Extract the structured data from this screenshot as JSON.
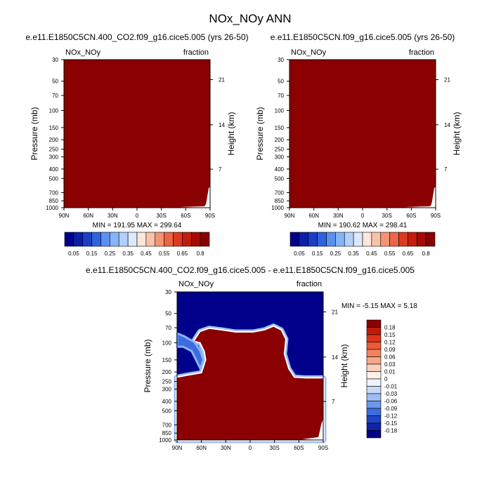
{
  "figure": {
    "title": "NOx_NOy ANN"
  },
  "colors": {
    "dark_red": "#8b0000",
    "dark_blue": "#00008b",
    "white_band": "#ffffff"
  },
  "chart_data": [
    {
      "type": "heatmap",
      "title": "e.e11.E1850C5CN.400_CO2.f09_g16.cice5.005 (yrs 26-50)",
      "left_label": "NOx_NOy",
      "right_label": "fraction",
      "ylabel": "Pressure (mb)",
      "ylabel_right": "Height (km)",
      "x_ticks": [
        "90N",
        "60N",
        "30N",
        "0",
        "30S",
        "60S",
        "90S"
      ],
      "y_ticks": [
        "30",
        "50",
        "70",
        "100",
        "150",
        "200",
        "250",
        "300",
        "400",
        "500",
        "700",
        "850",
        "1000"
      ],
      "height_ticks": [
        "21",
        "14",
        "7"
      ],
      "stats": "MIN = 191.95  MAX = 299.64",
      "colorbar_labels": [
        "0.05",
        "0.15",
        "0.25",
        "0.35",
        "0.45",
        "0.55",
        "0.65",
        "0.8"
      ],
      "colorbar_colors": [
        "#00008b",
        "#0b1fa8",
        "#1b3fc4",
        "#2e63df",
        "#5a8ff0",
        "#86b4f8",
        "#b3d0fb",
        "#dce9fd",
        "#fde6dc",
        "#f9c1a8",
        "#f49474",
        "#ec6545",
        "#dc3a20",
        "#c41d0c",
        "#a70a03",
        "#8b0000"
      ]
    },
    {
      "type": "heatmap",
      "title": "e.e11.E1850C5CN.f09_g16.cice5.005 (yrs 26-50)",
      "left_label": "NOx_NOy",
      "right_label": "fraction",
      "ylabel": "Pressure (mb)",
      "ylabel_right": "Height (km)",
      "x_ticks": [
        "90N",
        "60N",
        "30N",
        "0",
        "30S",
        "60S",
        "90S"
      ],
      "y_ticks": [
        "30",
        "50",
        "70",
        "100",
        "150",
        "200",
        "250",
        "300",
        "400",
        "500",
        "700",
        "850",
        "1000"
      ],
      "height_ticks": [
        "21",
        "14",
        "7"
      ],
      "stats": "MIN = 190.62  MAX = 298.41",
      "colorbar_labels": [
        "0.05",
        "0.15",
        "0.25",
        "0.35",
        "0.45",
        "0.55",
        "0.65",
        "0.8"
      ],
      "colorbar_colors": [
        "#00008b",
        "#0b1fa8",
        "#1b3fc4",
        "#2e63df",
        "#5a8ff0",
        "#86b4f8",
        "#b3d0fb",
        "#dce9fd",
        "#fde6dc",
        "#f9c1a8",
        "#f49474",
        "#ec6545",
        "#dc3a20",
        "#c41d0c",
        "#a70a03",
        "#8b0000"
      ]
    },
    {
      "type": "heatmap",
      "title": "e.e11.E1850C5CN.400_CO2.f09_g16.cice5.005 - e.e11.E1850C5CN.f09_g16.cice5.005",
      "left_label": "NOx_NOy",
      "right_label": "fraction",
      "ylabel": "Pressure (mb)",
      "ylabel_right": "Height (km)",
      "x_ticks": [
        "90N",
        "60N",
        "30N",
        "0",
        "30S",
        "60S",
        "90S"
      ],
      "y_ticks": [
        "30",
        "50",
        "70",
        "100",
        "150",
        "200",
        "250",
        "300",
        "400",
        "500",
        "700",
        "850",
        "1000"
      ],
      "height_ticks": [
        "21",
        "14",
        "7"
      ],
      "stats": "MIN = -5.15  MAX =  5.18",
      "colorbar_labels": [
        "0.18",
        "0.15",
        "0.12",
        "0.09",
        "0.06",
        "0.03",
        "0.01",
        "0",
        "-0.01",
        "-0.03",
        "-0.06",
        "-0.09",
        "-0.12",
        "-0.15",
        "-0.18"
      ],
      "colorbar_colors": [
        "#8b0000",
        "#c21b0a",
        "#e0341a",
        "#ee5a36",
        "#f3825e",
        "#f7a788",
        "#fad0bd",
        "#fdf0ea",
        "#eef3fd",
        "#c8daf9",
        "#9dbdf4",
        "#6c97ec",
        "#3d6ce0",
        "#1f44c8",
        "#0e23a8",
        "#00008b"
      ]
    }
  ]
}
